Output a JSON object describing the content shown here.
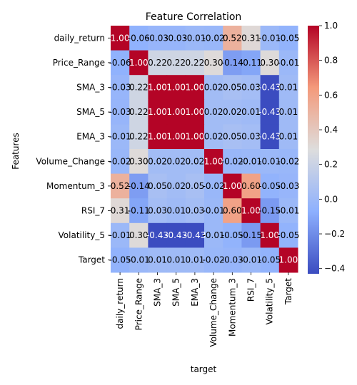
{
  "chart_data": {
    "type": "heatmap",
    "title": "Feature Correlation",
    "xlabel": "target",
    "ylabel": "Features",
    "rows": [
      "daily_return",
      "Price_Range",
      "SMA_3",
      "SMA_5",
      "EMA_3",
      "Volume_Change",
      "Momentum_3",
      "RSI_7",
      "Volatility_5",
      "Target"
    ],
    "columns": [
      "daily_return",
      "Price_Range",
      "SMA_3",
      "SMA_5",
      "EMA_3",
      "Volume_Change",
      "Momentum_3",
      "RSI_7",
      "Volatility_5",
      "Target"
    ],
    "values": [
      [
        1.0,
        -0.06,
        -0.03,
        -0.03,
        -0.01,
        -0.02,
        0.52,
        0.31,
        -0.01,
        -0.05
      ],
      [
        -0.06,
        1.0,
        0.22,
        0.22,
        0.22,
        0.3,
        -0.14,
        -0.11,
        0.3,
        -0.01
      ],
      [
        -0.03,
        0.22,
        1.0,
        1.0,
        1.0,
        0.02,
        0.05,
        0.03,
        -0.43,
        0.01
      ],
      [
        -0.03,
        0.22,
        1.0,
        1.0,
        1.0,
        0.02,
        0.02,
        0.01,
        -0.43,
        0.01
      ],
      [
        -0.01,
        0.22,
        1.0,
        1.0,
        1.0,
        0.02,
        0.05,
        0.03,
        -0.43,
        0.01
      ],
      [
        -0.02,
        0.3,
        0.02,
        0.02,
        0.02,
        1.0,
        -0.02,
        -0.01,
        -0.01,
        -0.02
      ],
      [
        0.52,
        -0.14,
        0.05,
        0.02,
        0.05,
        -0.02,
        1.0,
        0.6,
        -0.05,
        -0.03
      ],
      [
        0.31,
        -0.11,
        0.03,
        0.01,
        0.03,
        -0.01,
        0.6,
        1.0,
        -0.15,
        -0.01
      ],
      [
        -0.01,
        0.3,
        -0.43,
        -0.43,
        -0.43,
        -0.01,
        -0.05,
        -0.15,
        1.0,
        -0.05
      ],
      [
        -0.05,
        -0.01,
        0.01,
        0.01,
        0.01,
        -0.02,
        -0.03,
        -0.01,
        -0.05,
        1.0
      ]
    ],
    "colormap": "coolwarm",
    "vmin": -0.43,
    "vmax": 1.0,
    "colorbar_ticks": [
      1.0,
      0.8,
      0.6,
      0.4,
      0.2,
      0.0,
      -0.2,
      -0.4
    ],
    "colorbar_tick_labels": [
      "1.0",
      "0.8",
      "0.6",
      "0.4",
      "0.2",
      "0.0",
      "−0.2",
      "−0.4"
    ],
    "annotation_format": "2 decimals",
    "colors": {
      "low": "#3b4cc0",
      "mid": "#dddddd",
      "high": "#b40426"
    }
  }
}
